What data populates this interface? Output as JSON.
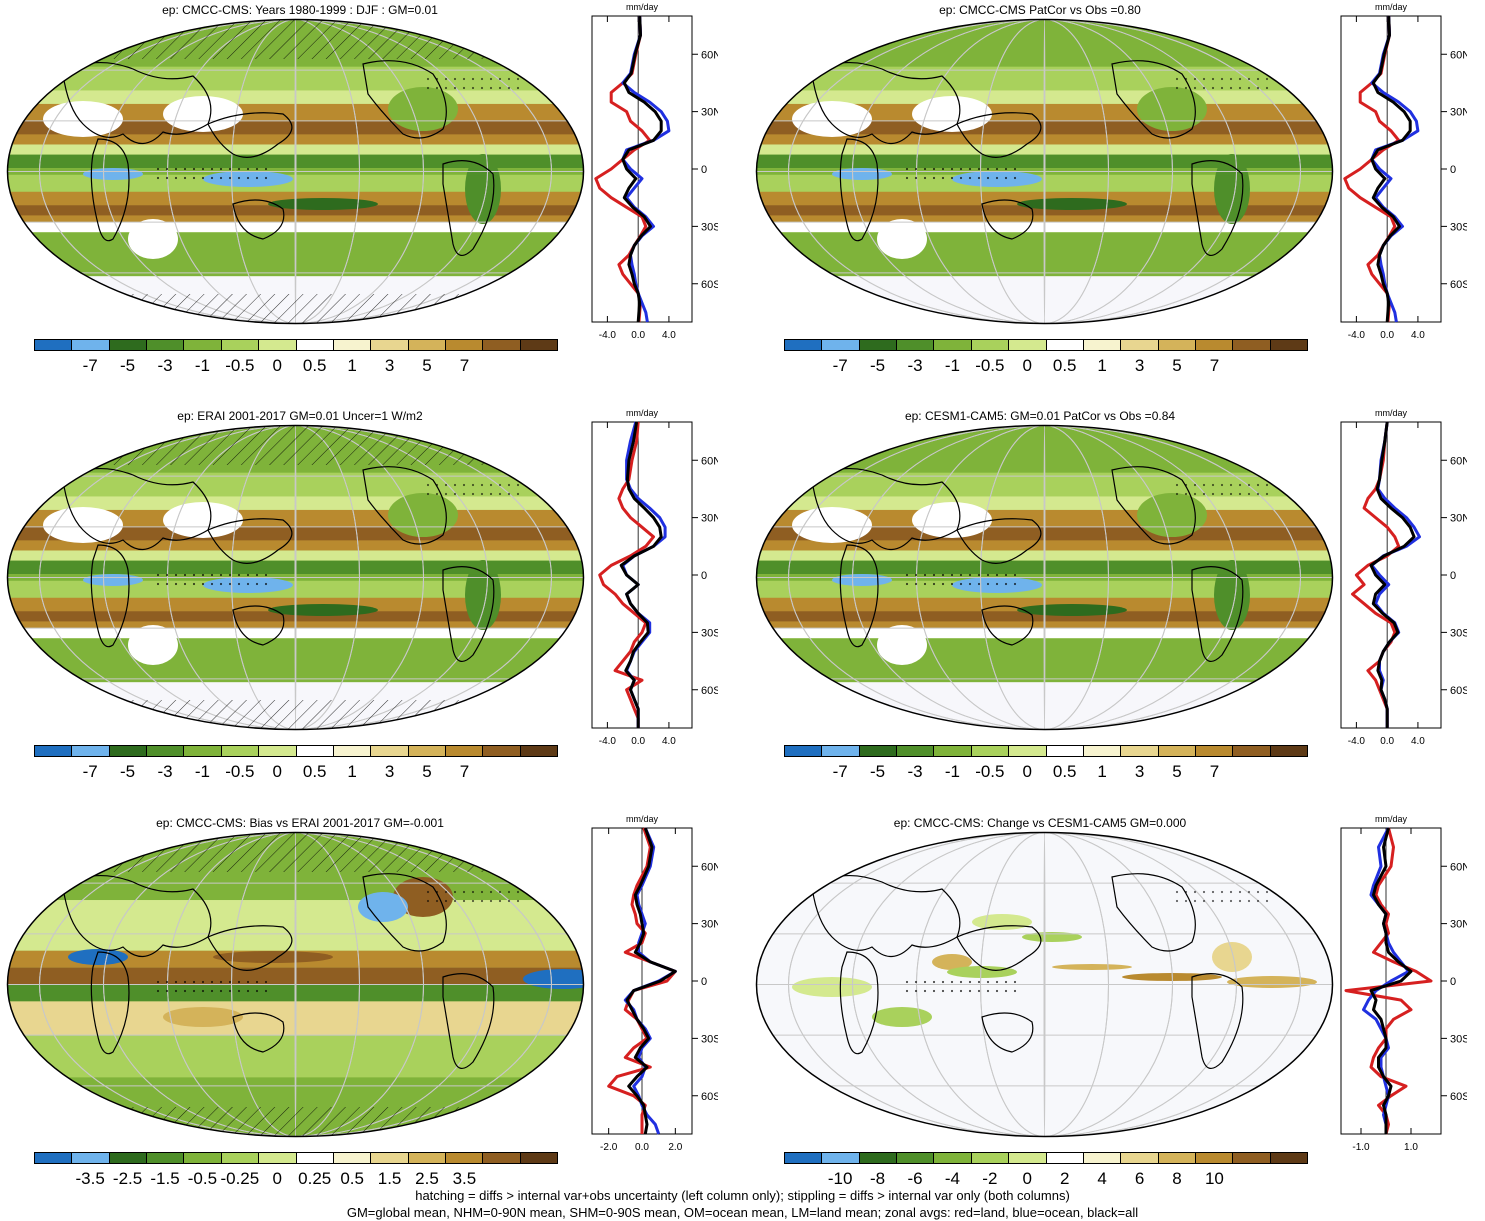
{
  "colors": {
    "div14": [
      "#1f6fc0",
      "#6fb3ec",
      "#2e6b1e",
      "#4f8f2a",
      "#7fb33a",
      "#a9d15c",
      "#d4e98f",
      "#ffffff",
      "#f7f3cf",
      "#e8d690",
      "#d4b35a",
      "#b98a2f",
      "#8f5e22",
      "#5e3a16"
    ],
    "land_line": "#d62020",
    "ocean_line": "#2030e0",
    "all_line": "#000000"
  },
  "panels": [
    {
      "title": "ep: CMCC-CMS: Years 1980-1999 : DJF : GM=0.01",
      "colorbar_labels": [
        "-7",
        "-5",
        "-3",
        "-1",
        "-0.5",
        "0",
        "0.5",
        "1",
        "3",
        "5",
        "7"
      ],
      "zonal_unit": "mm/day",
      "zonal_xticks": [
        "-4.0",
        "0.0",
        "4.0"
      ],
      "zonal_xrange": [
        -6,
        7
      ],
      "zonal_lat_labels": [
        "60N",
        "30N",
        "0",
        "30S",
        "60S"
      ],
      "style": "climo",
      "hatch": true
    },
    {
      "title": "ep: CMCC-CMS PatCor vs Obs =0.80",
      "colorbar_labels": [
        "-7",
        "-5",
        "-3",
        "-1",
        "-0.5",
        "0",
        "0.5",
        "1",
        "3",
        "5",
        "7"
      ],
      "zonal_unit": "mm/day",
      "zonal_xticks": [
        "-4.0",
        "0.0",
        "4.0"
      ],
      "zonal_xrange": [
        -6,
        7
      ],
      "zonal_lat_labels": [
        "60N",
        "30N",
        "0",
        "30S",
        "60S"
      ],
      "style": "climo",
      "hatch": false
    },
    {
      "title": "ep: ERAI 2001-2017 GM=0.01 Uncer=1 W/m2",
      "colorbar_labels": [
        "-7",
        "-5",
        "-3",
        "-1",
        "-0.5",
        "0",
        "0.5",
        "1",
        "3",
        "5",
        "7"
      ],
      "zonal_unit": "mm/day",
      "zonal_xticks": [
        "-4.0",
        "0.0",
        "4.0"
      ],
      "zonal_xrange": [
        -6,
        7
      ],
      "zonal_lat_labels": [
        "60N",
        "30N",
        "0",
        "30S",
        "60S"
      ],
      "style": "climo",
      "hatch": true
    },
    {
      "title": "ep: CESM1-CAM5: GM=0.01 PatCor vs Obs =0.84",
      "colorbar_labels": [
        "-7",
        "-5",
        "-3",
        "-1",
        "-0.5",
        "0",
        "0.5",
        "1",
        "3",
        "5",
        "7"
      ],
      "zonal_unit": "mm/day",
      "zonal_xticks": [
        "-4.0",
        "0.0",
        "4.0"
      ],
      "zonal_xrange": [
        -6,
        7
      ],
      "zonal_lat_labels": [
        "60N",
        "30N",
        "0",
        "30S",
        "60S"
      ],
      "style": "climo",
      "hatch": false
    },
    {
      "title": "ep: CMCC-CMS: Bias vs ERAI 2001-2017 GM=-0.001",
      "colorbar_labels": [
        "-3.5",
        "-2.5",
        "-1.5",
        "-0.5",
        "-0.25",
        "0",
        "0.25",
        "0.5",
        "1.5",
        "2.5",
        "3.5"
      ],
      "zonal_unit": "mm/day",
      "zonal_xticks": [
        "-2.0",
        "0.0",
        "2.0"
      ],
      "zonal_xrange": [
        -3,
        3
      ],
      "zonal_lat_labels": [
        "60N",
        "30N",
        "0",
        "30S",
        "60S"
      ],
      "style": "bias",
      "hatch": true
    },
    {
      "title": "ep: CMCC-CMS: Change vs CESM1-CAM5 GM=0.000",
      "colorbar_labels": [
        "-10",
        "-8",
        "-6",
        "-4",
        "-2",
        "0",
        "2",
        "4",
        "6",
        "8",
        "10"
      ],
      "zonal_unit": "mm/day",
      "zonal_xticks": [
        "-1.0",
        "1.0"
      ],
      "zonal_xrange": [
        -1.8,
        2.2
      ],
      "zonal_lat_labels": [
        "60N",
        "30N",
        "0",
        "30S",
        "60S"
      ],
      "style": "change",
      "hatch": false
    }
  ],
  "chart_data": [
    {
      "type": "line",
      "title": "ep: CMCC-CMS: Years 1980-1999 : DJF : GM=0.01",
      "xlabel": "mm/day",
      "lat": [
        80,
        70,
        60,
        50,
        45,
        40,
        35,
        30,
        25,
        20,
        15,
        10,
        5,
        0,
        -5,
        -10,
        -15,
        -20,
        -25,
        -30,
        -35,
        -40,
        -45,
        -50,
        -55,
        -60,
        -65,
        -70,
        -75,
        -80
      ],
      "series": [
        {
          "name": "land",
          "values": [
            0.2,
            0.3,
            -0.3,
            -0.8,
            -2.0,
            -3.5,
            -3.5,
            -1.5,
            -1.0,
            0.5,
            1.5,
            -0.5,
            -2.0,
            -3.5,
            -5.5,
            -5.0,
            -3.5,
            -1.5,
            0.5,
            1.0,
            0.3,
            -0.5,
            -1.2,
            -2.5,
            -2.0,
            -1.0,
            0.0,
            0.3,
            0.2,
            0.1
          ]
        },
        {
          "name": "ocean",
          "values": [
            0.2,
            0.3,
            -0.5,
            -1.0,
            -2.0,
            -0.5,
            1.5,
            3.0,
            3.8,
            4.0,
            2.0,
            -1.5,
            -2.0,
            -1.0,
            0.5,
            -0.5,
            -1.5,
            -0.5,
            1.0,
            2.0,
            0.5,
            -0.5,
            -1.0,
            -0.8,
            -0.5,
            -0.3,
            0.0,
            0.5,
            1.0,
            1.2
          ]
        },
        {
          "name": "all",
          "values": [
            0.2,
            0.3,
            -0.4,
            -0.9,
            -1.8,
            -1.2,
            0.8,
            2.2,
            3.0,
            3.0,
            2.0,
            -1.2,
            -2.0,
            -1.5,
            -0.3,
            -1.2,
            -1.8,
            -0.7,
            0.8,
            1.6,
            0.4,
            -0.5,
            -1.0,
            -1.2,
            -0.8,
            -0.5,
            0.0,
            0.2,
            0.1,
            0.0
          ]
        }
      ]
    },
    {
      "type": "line",
      "title": "ep: CMCC-CMS PatCor vs Obs =0.80",
      "xlabel": "mm/day",
      "lat": [
        80,
        70,
        60,
        50,
        45,
        40,
        35,
        30,
        25,
        20,
        15,
        10,
        5,
        0,
        -5,
        -10,
        -15,
        -20,
        -25,
        -30,
        -35,
        -40,
        -45,
        -50,
        -55,
        -60,
        -65,
        -70,
        -75,
        -80
      ],
      "series": [
        {
          "name": "land",
          "values": [
            0.2,
            0.3,
            -0.3,
            -0.8,
            -2.0,
            -3.5,
            -3.5,
            -1.5,
            -1.0,
            0.5,
            1.5,
            -0.5,
            -2.0,
            -3.5,
            -5.5,
            -5.0,
            -3.5,
            -1.5,
            0.5,
            1.0,
            0.3,
            -0.5,
            -1.2,
            -2.5,
            -2.0,
            -1.0,
            0.0,
            0.3,
            0.2,
            0.1
          ]
        },
        {
          "name": "ocean",
          "values": [
            0.2,
            0.3,
            -0.5,
            -1.0,
            -2.0,
            -0.5,
            1.5,
            3.0,
            3.8,
            4.0,
            2.0,
            -1.5,
            -2.0,
            -1.0,
            0.5,
            -0.5,
            -1.5,
            -0.5,
            1.0,
            2.0,
            0.5,
            -0.5,
            -1.0,
            -0.8,
            -0.5,
            -0.3,
            0.0,
            0.5,
            1.0,
            1.2
          ]
        },
        {
          "name": "all",
          "values": [
            0.2,
            0.3,
            -0.4,
            -0.9,
            -1.8,
            -1.2,
            0.8,
            2.2,
            3.0,
            3.0,
            2.0,
            -1.2,
            -2.0,
            -1.5,
            -0.3,
            -1.2,
            -1.8,
            -0.7,
            0.8,
            1.6,
            0.4,
            -0.5,
            -1.0,
            -1.2,
            -0.8,
            -0.5,
            0.0,
            0.2,
            0.1,
            0.0
          ]
        }
      ]
    },
    {
      "type": "line",
      "title": "ep: ERAI 2001-2017 GM=0.01 Uncer=1 W/m2",
      "xlabel": "mm/day",
      "lat": [
        80,
        70,
        60,
        50,
        45,
        40,
        35,
        30,
        25,
        20,
        15,
        10,
        5,
        0,
        -5,
        -10,
        -15,
        -20,
        -25,
        -30,
        -35,
        -40,
        -45,
        -50,
        -55,
        -60,
        -65,
        -70,
        -75,
        -80
      ],
      "series": [
        {
          "name": "land",
          "values": [
            0.0,
            -0.2,
            -0.8,
            -1.2,
            -2.0,
            -2.5,
            -2.0,
            -1.0,
            0.5,
            2.0,
            1.0,
            -1.0,
            -3.5,
            -5.0,
            -4.5,
            -3.0,
            -2.0,
            -0.5,
            1.0,
            0.5,
            -0.5,
            -1.0,
            -2.0,
            -3.0,
            0.5,
            -1.5,
            -1.0,
            -0.5,
            0.0,
            0.0
          ]
        },
        {
          "name": "ocean",
          "values": [
            -0.3,
            -1.0,
            -1.5,
            -1.5,
            -1.0,
            0.0,
            1.5,
            2.8,
            3.5,
            3.5,
            2.0,
            -0.5,
            -2.0,
            -1.5,
            0.0,
            -1.5,
            -1.0,
            0.0,
            1.5,
            1.5,
            0.5,
            -0.5,
            -1.0,
            -1.5,
            -0.5,
            -1.0,
            -0.5,
            0.0,
            0.0,
            0.0
          ]
        },
        {
          "name": "all",
          "values": [
            -0.2,
            -0.6,
            -1.2,
            -1.4,
            -1.2,
            -0.5,
            0.8,
            2.0,
            2.8,
            3.0,
            2.0,
            -0.5,
            -2.2,
            -1.5,
            0.0,
            -1.5,
            -1.0,
            0.0,
            1.2,
            1.3,
            0.3,
            -0.6,
            -1.0,
            -1.6,
            -0.5,
            -1.0,
            -0.5,
            0.0,
            0.0,
            0.0
          ]
        }
      ]
    },
    {
      "type": "line",
      "title": "ep: CESM1-CAM5: GM=0.01 PatCor vs Obs =0.84",
      "xlabel": "mm/day",
      "lat": [
        80,
        70,
        60,
        50,
        45,
        40,
        35,
        30,
        25,
        20,
        15,
        10,
        5,
        0,
        -5,
        -10,
        -15,
        -20,
        -25,
        -30,
        -35,
        -40,
        -45,
        -50,
        -55,
        -60,
        -65,
        -70,
        -75,
        -80
      ],
      "series": [
        {
          "name": "land",
          "values": [
            0.0,
            -0.3,
            -0.5,
            -1.0,
            -1.5,
            -2.5,
            -3.0,
            -1.5,
            0.0,
            1.0,
            1.5,
            0.0,
            -2.5,
            -4.0,
            -3.0,
            -4.5,
            -3.0,
            -1.5,
            0.5,
            1.0,
            0.5,
            -0.5,
            -1.0,
            -2.5,
            -1.5,
            -1.0,
            -0.5,
            0.0,
            0.0,
            0.0
          ]
        },
        {
          "name": "ocean",
          "values": [
            0.0,
            -0.3,
            -0.8,
            -1.0,
            -1.2,
            -0.3,
            1.0,
            2.5,
            3.5,
            4.2,
            2.5,
            -0.5,
            -2.0,
            -1.0,
            0.2,
            -1.0,
            -1.5,
            -0.5,
            1.0,
            1.5,
            0.3,
            -0.5,
            -1.0,
            -1.0,
            -0.5,
            -0.8,
            -0.3,
            0.0,
            0.0,
            0.0
          ]
        },
        {
          "name": "all",
          "values": [
            0.0,
            -0.3,
            -0.7,
            -1.0,
            -1.3,
            -0.8,
            0.5,
            2.0,
            3.0,
            3.5,
            2.2,
            -0.4,
            -2.1,
            -1.5,
            -0.3,
            -1.5,
            -1.8,
            -0.6,
            0.9,
            1.4,
            0.3,
            -0.5,
            -1.0,
            -1.2,
            -0.7,
            -0.8,
            -0.3,
            0.0,
            0.0,
            0.0
          ]
        }
      ]
    },
    {
      "type": "line",
      "title": "ep: CMCC-CMS: Bias vs ERAI 2001-2017 GM=-0.001",
      "xlabel": "mm/day",
      "lat": [
        80,
        70,
        60,
        50,
        45,
        40,
        35,
        30,
        25,
        20,
        15,
        10,
        5,
        0,
        -5,
        -10,
        -15,
        -20,
        -25,
        -30,
        -35,
        -40,
        -45,
        -50,
        -55,
        -60,
        -65,
        -70,
        -75,
        -80
      ],
      "series": [
        {
          "name": "land",
          "values": [
            0.1,
            0.5,
            0.3,
            -0.3,
            -0.5,
            -0.6,
            -0.4,
            -0.3,
            0.2,
            0.0,
            -1.0,
            0.5,
            2.0,
            1.5,
            -0.5,
            -0.8,
            -1.0,
            -0.3,
            0.0,
            0.3,
            -0.5,
            -1.0,
            0.5,
            -1.5,
            -2.0,
            -0.5,
            0.2,
            0.0,
            0.0,
            0.0
          ]
        },
        {
          "name": "ocean",
          "values": [
            0.2,
            0.7,
            0.5,
            0.0,
            -0.3,
            -0.2,
            0.0,
            0.2,
            0.0,
            -0.2,
            -0.2,
            0.5,
            2.0,
            1.0,
            -0.5,
            -1.0,
            -0.5,
            -0.3,
            0.2,
            0.5,
            0.0,
            -0.2,
            0.2,
            0.0,
            -0.5,
            -0.2,
            0.0,
            0.3,
            0.8,
            1.0
          ]
        },
        {
          "name": "all",
          "values": [
            0.2,
            0.6,
            0.4,
            -0.1,
            -0.4,
            -0.3,
            -0.1,
            0.0,
            0.1,
            -0.1,
            -0.4,
            0.5,
            2.0,
            1.1,
            -0.5,
            -0.9,
            -0.6,
            -0.3,
            0.1,
            0.4,
            -0.1,
            -0.4,
            0.3,
            -0.3,
            -0.8,
            -0.3,
            0.1,
            0.2,
            0.3,
            0.2
          ]
        }
      ]
    },
    {
      "type": "line",
      "title": "ep: CMCC-CMS: Change vs CESM1-CAM5 GM=0.000",
      "xlabel": "mm/day",
      "lat": [
        80,
        70,
        60,
        50,
        45,
        40,
        35,
        30,
        25,
        20,
        15,
        10,
        5,
        0,
        -5,
        -10,
        -15,
        -20,
        -25,
        -30,
        -35,
        -40,
        -45,
        -50,
        -55,
        -60,
        -65,
        -70,
        -75,
        -80
      ],
      "series": [
        {
          "name": "land",
          "values": [
            0.1,
            0.3,
            0.2,
            -0.3,
            -0.4,
            -0.2,
            0.1,
            0.0,
            0.1,
            -0.2,
            -0.5,
            0.3,
            1.2,
            1.8,
            -1.6,
            0.6,
            1.0,
            0.3,
            0.0,
            0.0,
            -0.3,
            -0.5,
            -0.6,
            -0.2,
            0.8,
            0.2,
            -0.3,
            0.0,
            0.1,
            0.0
          ]
        },
        {
          "name": "ocean",
          "values": [
            0.1,
            -0.3,
            -0.2,
            -0.5,
            -0.6,
            -0.3,
            0.0,
            -0.1,
            0.0,
            0.1,
            0.3,
            0.6,
            0.9,
            0.2,
            -0.4,
            -0.7,
            -0.9,
            -0.4,
            -0.2,
            0.0,
            0.1,
            -0.2,
            -0.2,
            -0.1,
            0.0,
            0.1,
            0.0,
            -0.1,
            0.0,
            0.0
          ]
        },
        {
          "name": "all",
          "values": [
            0.1,
            -0.1,
            0.0,
            -0.4,
            -0.5,
            -0.3,
            0.0,
            -0.1,
            0.0,
            0.0,
            0.1,
            0.5,
            1.0,
            0.6,
            -0.6,
            -0.4,
            -0.5,
            -0.2,
            -0.1,
            0.0,
            0.0,
            -0.3,
            -0.3,
            -0.1,
            0.2,
            0.1,
            -0.1,
            0.0,
            0.0,
            0.0
          ]
        }
      ]
    }
  ],
  "footer": {
    "line1": "hatching = diffs > internal var+obs uncertainty (left column only); stippling = diffs > internal var only (both columns)",
    "line2": "GM=global mean, NHM=0-90N mean, SHM=0-90S mean, OM=ocean mean, LM=land mean; zonal avgs: red=land, blue=ocean, black=all"
  }
}
